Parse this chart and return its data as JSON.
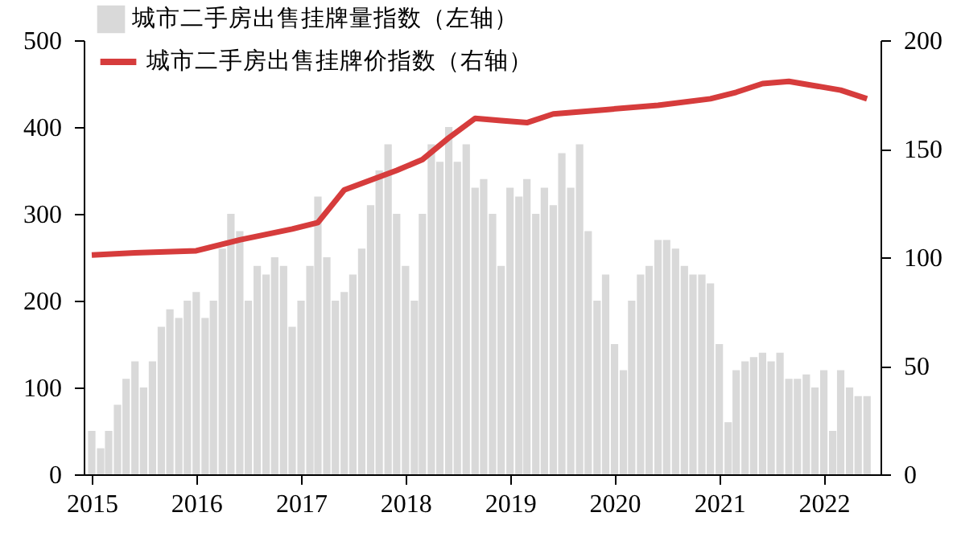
{
  "chart_data": {
    "type": "bar",
    "legend": "top left",
    "grid": false,
    "xlim": [
      "2015-01-01",
      "2022-06-20"
    ],
    "xticks": [
      "2015",
      "2016",
      "2017",
      "2018",
      "2019",
      "2020",
      "2021",
      "2022"
    ],
    "ylim": [
      0,
      500
    ],
    "yticks": [
      0,
      100,
      200,
      300,
      400,
      500
    ],
    "y2lim": [
      0,
      200
    ],
    "y2ticks": [
      0,
      50,
      100,
      150,
      200
    ],
    "x": [
      "2015-01",
      "2015-02",
      "2015-03",
      "2015-04",
      "2015-05",
      "2015-06",
      "2015-07",
      "2015-08",
      "2015-09",
      "2015-10",
      "2015-11",
      "2015-12",
      "2016-01",
      "2016-02",
      "2016-03",
      "2016-04",
      "2016-05",
      "2016-06",
      "2016-07",
      "2016-08",
      "2016-09",
      "2016-10",
      "2016-11",
      "2016-12",
      "2017-01",
      "2017-02",
      "2017-03",
      "2017-04",
      "2017-05",
      "2017-06",
      "2017-07",
      "2017-08",
      "2017-09",
      "2017-10",
      "2017-11",
      "2017-12",
      "2018-01",
      "2018-02",
      "2018-03",
      "2018-04",
      "2018-05",
      "2018-06",
      "2018-07",
      "2018-08",
      "2018-09",
      "2018-10",
      "2018-11",
      "2018-12",
      "2019-01",
      "2019-02",
      "2019-03",
      "2019-04",
      "2019-05",
      "2019-06",
      "2019-07",
      "2019-08",
      "2019-09",
      "2019-10",
      "2019-11",
      "2019-12",
      "2020-01",
      "2020-02",
      "2020-03",
      "2020-04",
      "2020-05",
      "2020-06",
      "2020-07",
      "2020-08",
      "2020-09",
      "2020-10",
      "2020-11",
      "2020-12",
      "2021-01",
      "2021-02",
      "2021-03",
      "2021-04",
      "2021-05",
      "2021-06",
      "2021-07",
      "2021-08",
      "2021-09",
      "2021-10",
      "2021-11",
      "2021-12",
      "2022-01",
      "2022-02",
      "2022-03",
      "2022-04",
      "2022-05",
      "2022-06"
    ],
    "series": [
      {
        "name": "城市二手房出售挂牌量指数（左轴）",
        "color": "#d9d9d9",
        "values": [
          50,
          30,
          50,
          80,
          110,
          130,
          100,
          130,
          170,
          190,
          180,
          200,
          210,
          180,
          200,
          260,
          300,
          280,
          200,
          240,
          230,
          250,
          240,
          170,
          200,
          240,
          320,
          250,
          200,
          210,
          230,
          260,
          310,
          350,
          380,
          300,
          240,
          200,
          300,
          380,
          360,
          400,
          360,
          380,
          330,
          340,
          300,
          240,
          330,
          320,
          340,
          300,
          330,
          310,
          370,
          330,
          380,
          280,
          200,
          230,
          150,
          120,
          200,
          230,
          240,
          270,
          270,
          260,
          240,
          230,
          230,
          220,
          150,
          60,
          120,
          130,
          135,
          140,
          130,
          140,
          110,
          110,
          115,
          100,
          120,
          50,
          120,
          100,
          90,
          90
        ]
      },
      {
        "name": "城市二手房出售挂牌价指数（右轴）",
        "type": "line",
        "axis": "y2",
        "color": "#d63c3c",
        "x": [
          "2015-01",
          "2015-06",
          "2016-01",
          "2016-06",
          "2016-12",
          "2017-03",
          "2017-06",
          "2017-12",
          "2018-03",
          "2018-06",
          "2018-09",
          "2018-12",
          "2019-03",
          "2019-06",
          "2019-12",
          "2020-06",
          "2020-12",
          "2021-03",
          "2021-06",
          "2021-09",
          "2021-12",
          "2022-03",
          "2022-06"
        ],
        "values": [
          101,
          102,
          103,
          108,
          113,
          116,
          131,
          140,
          145,
          155,
          164,
          163,
          162,
          166,
          168,
          170,
          173,
          176,
          180,
          181,
          179,
          177,
          173
        ]
      }
    ]
  }
}
